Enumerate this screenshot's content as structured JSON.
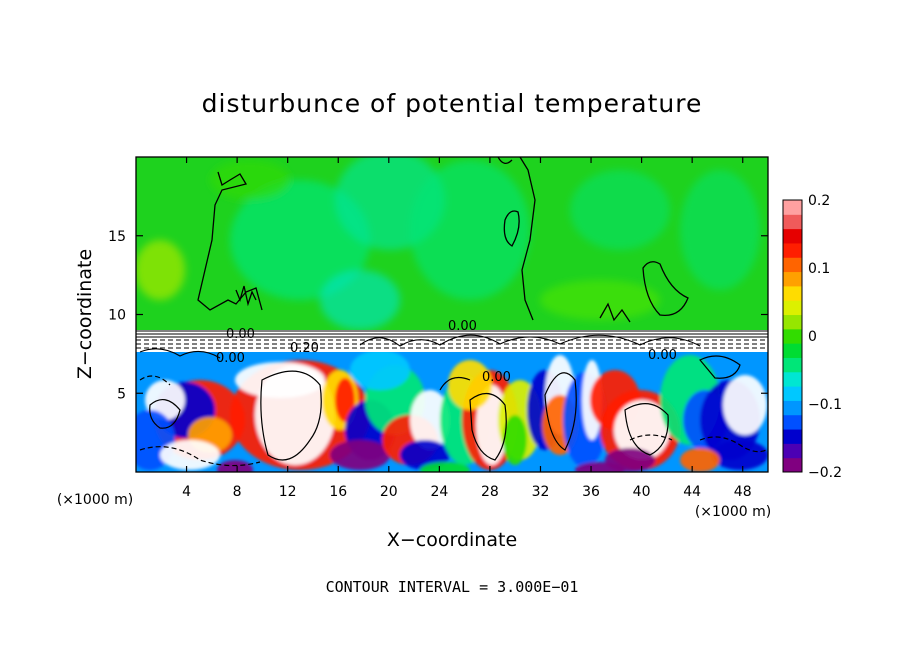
{
  "chart_data": {
    "type": "heatmap",
    "title": "disturbunce of potential temperature",
    "xlabel": "X−coordinate",
    "ylabel": "Z−coordinate",
    "x_unit_left": "(×1000 m)",
    "x_unit_right": "(×1000 m)",
    "xlim": [
      0,
      50
    ],
    "ylim": [
      0,
      20
    ],
    "xticks": [
      4,
      8,
      12,
      16,
      20,
      24,
      28,
      32,
      36,
      40,
      44,
      48
    ],
    "yticks": [
      5,
      10,
      15
    ],
    "colorbar": {
      "range": [
        -0.2,
        0.2
      ],
      "ticks": [
        0.2,
        0.1,
        0,
        -0.1,
        -0.2
      ],
      "tick_labels": [
        "0.2",
        "0.1",
        "0",
        "−0.1",
        "−0.2"
      ],
      "colors": [
        "#800080",
        "#4b00b4",
        "#0000cd",
        "#0050ff",
        "#0096ff",
        "#00c8ff",
        "#00e6d2",
        "#00e678",
        "#00dc32",
        "#32dc00",
        "#96e600",
        "#dcf000",
        "#ffdc00",
        "#ffa000",
        "#ff6400",
        "#ff1e00",
        "#e60000",
        "#f05a5a",
        "#ffa0a0"
      ]
    },
    "contour_labels": [
      "0.00",
      "0.00",
      "0.20",
      "0.00",
      "0.00",
      "0.00"
    ],
    "footer": "CONTOUR INTERVAL = 3.000E−01",
    "fields": [
      {
        "region": "upper",
        "z_range": [
          9,
          20
        ],
        "approx_value": 0.02
      },
      {
        "region": "lower",
        "z_range": [
          0,
          9
        ],
        "min": -0.2,
        "max": 0.2
      }
    ]
  }
}
